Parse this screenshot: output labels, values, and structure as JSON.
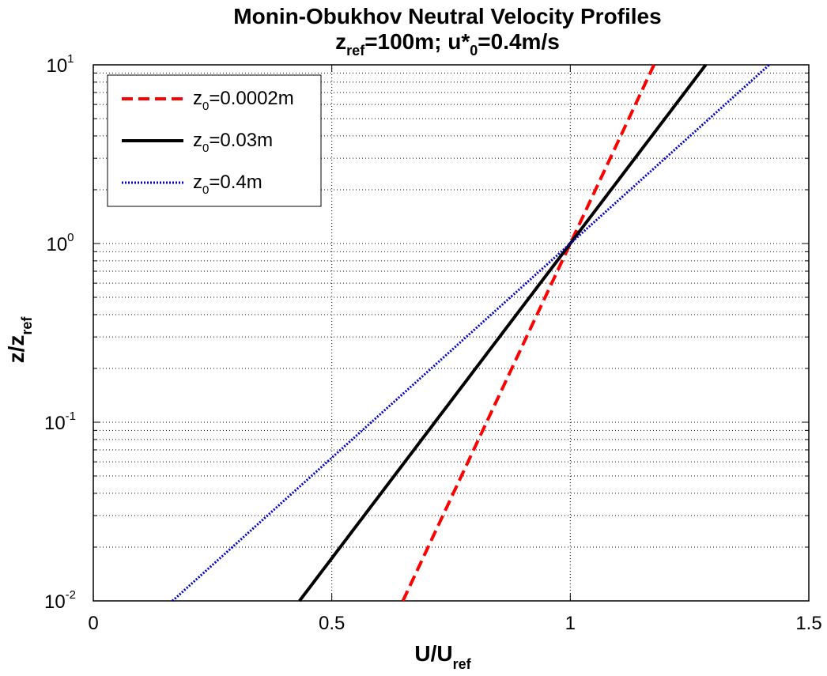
{
  "chart_data": {
    "type": "line",
    "title": {
      "line1": "Monin-Obukhov Neutral Velocity Profiles",
      "line2_parts": [
        {
          "t": "z",
          "sub": false
        },
        {
          "t": "ref",
          "sub": true
        },
        {
          "t": "=100m; u*",
          "sub": false
        },
        {
          "t": "0",
          "sub": true
        },
        {
          "t": "=0.4m/s",
          "sub": false
        }
      ]
    },
    "xlabel": {
      "base": "U/U",
      "sub": "ref"
    },
    "ylabel": {
      "base": "z/z",
      "sub": "ref"
    },
    "xlim": [
      0,
      1.5
    ],
    "ylim": [
      0.01,
      10
    ],
    "yscale": "log",
    "grid": true,
    "legend_position": "top-left",
    "xticks": [
      {
        "value": 0,
        "label": "0"
      },
      {
        "value": 0.5,
        "label": "0.5"
      },
      {
        "value": 1,
        "label": "1"
      },
      {
        "value": 1.5,
        "label": "1.5"
      }
    ],
    "yticks": [
      {
        "exp": -2,
        "base": "10",
        "sup": "-2"
      },
      {
        "exp": -1,
        "base": "10",
        "sup": "-1"
      },
      {
        "exp": 0,
        "base": "10",
        "sup": "0"
      },
      {
        "exp": 1,
        "base": "10",
        "sup": "1"
      }
    ],
    "series": [
      {
        "name_base": "z",
        "name_sub": "0",
        "name_rest": "=0.0002m",
        "z0": 0.0002,
        "color": "#ff0000",
        "style": "dashed",
        "width": 4,
        "x": [
          0.651,
          0.767,
          0.884,
          1.0,
          1.116,
          1.183
        ],
        "y": [
          0.01,
          0.03,
          0.1,
          1,
          10,
          10
        ]
      },
      {
        "name_base": "z",
        "name_sub": "0",
        "name_rest": "=0.03m",
        "z0": 0.03,
        "color": "#000000",
        "style": "solid",
        "width": 4,
        "x": [
          0.435,
          0.624,
          0.812,
          1.0,
          1.188,
          1.291
        ],
        "y": [
          0.01,
          0.03,
          0.1,
          1,
          10,
          10
        ]
      },
      {
        "name_base": "z",
        "name_sub": "0",
        "name_rest": "=0.4m",
        "z0": 0.4,
        "color": "#0000cc",
        "style": "dotted",
        "width": 3,
        "x": [
          0.163,
          0.442,
          0.721,
          1.0,
          1.279,
          1.428
        ],
        "y": [
          0.01,
          0.03,
          0.1,
          1,
          10,
          10
        ]
      }
    ]
  }
}
